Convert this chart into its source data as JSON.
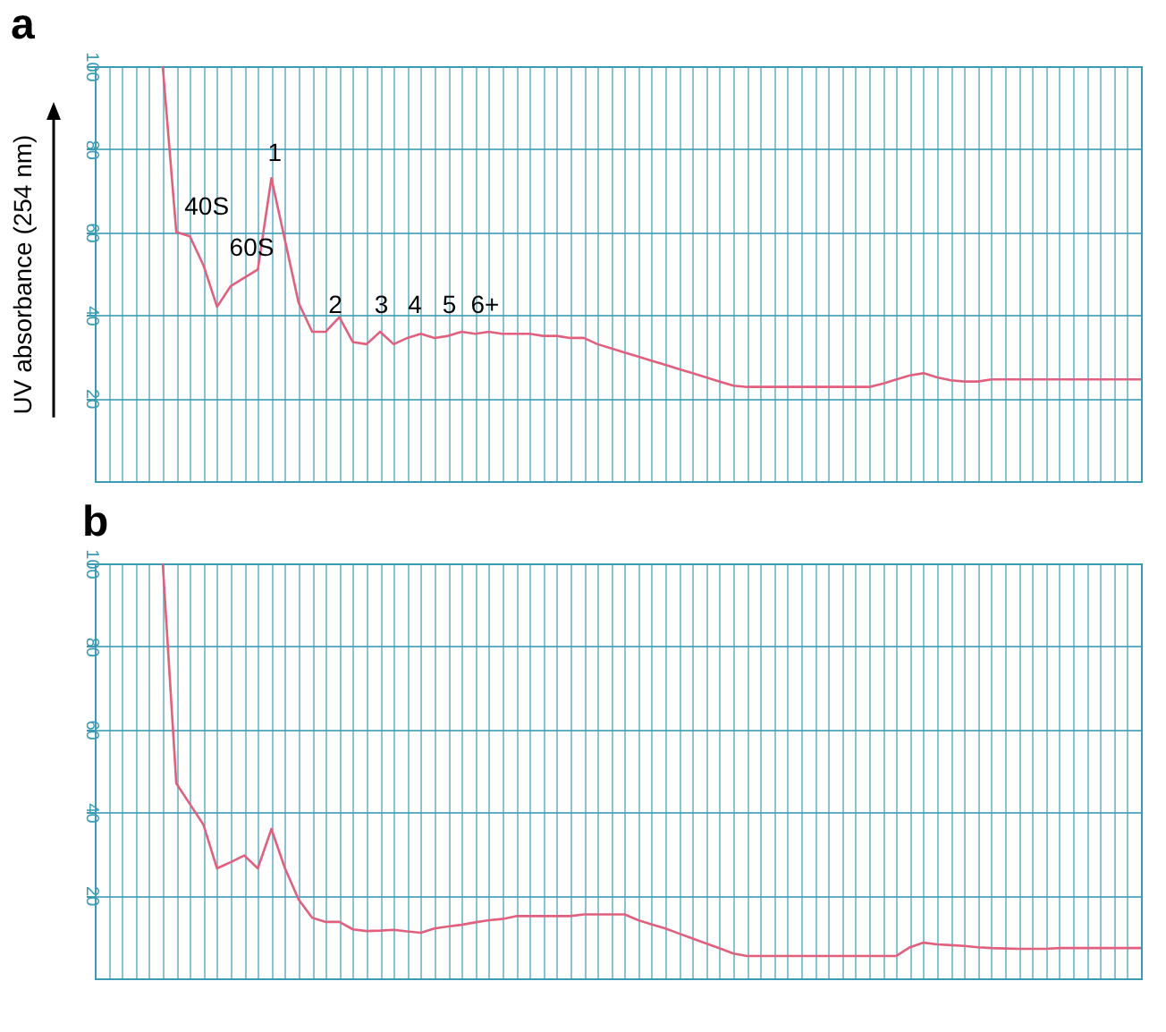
{
  "chart_data": [
    {
      "type": "line",
      "title": "a",
      "ylabel": "UV absorbance (254 nm)",
      "categories": [
        null,
        null,
        null,
        null,
        null,
        null,
        null,
        null,
        null,
        null,
        null,
        null,
        null,
        null,
        null,
        null,
        null,
        null,
        null,
        null,
        null,
        null,
        null,
        null,
        null,
        null,
        null,
        null,
        null,
        null,
        null,
        null,
        null,
        null,
        null,
        null,
        null,
        null,
        null,
        null,
        null,
        null,
        null,
        null,
        null,
        null,
        null,
        null,
        null,
        null,
        null,
        null,
        null,
        null,
        null,
        null,
        null,
        null,
        null,
        null,
        null,
        null,
        null,
        null,
        null,
        null,
        null,
        null,
        null,
        null,
        null,
        null,
        null,
        null,
        null,
        null,
        null,
        null
      ],
      "series": [
        {
          "color": "#e0607e",
          "values": [
            null,
            null,
            null,
            null,
            null,
            100,
            60,
            59,
            52,
            42,
            47,
            49,
            51,
            73,
            58,
            43,
            36,
            36,
            39.5,
            33.5,
            33,
            36,
            33,
            34.5,
            35.5,
            34.5,
            35,
            36,
            35.5,
            36,
            35.5,
            35.5,
            35.5,
            35,
            35,
            34.5,
            34.5,
            33,
            32,
            31,
            30,
            29,
            28,
            27,
            26,
            25,
            24,
            23,
            22.7,
            22.7,
            22.7,
            22.7,
            22.7,
            22.7,
            22.7,
            22.7,
            22.7,
            22.7,
            23.5,
            24.5,
            25.5,
            26,
            25,
            24.3,
            24,
            24,
            24.5,
            24.5,
            24.5,
            24.5,
            24.5,
            24.5,
            24.5,
            24.5,
            24.5,
            24.5,
            24.5,
            24.5
          ]
        }
      ],
      "ylim": [
        0,
        100
      ],
      "yticks": [
        20,
        40,
        60,
        80,
        100
      ],
      "grid": true,
      "annotations": [
        "40S",
        "60S",
        "1",
        "2",
        "3",
        "4",
        "5",
        "6+"
      ]
    },
    {
      "type": "line",
      "title": "b",
      "categories": [
        null,
        null,
        null,
        null,
        null,
        null,
        null,
        null,
        null,
        null,
        null,
        null,
        null,
        null,
        null,
        null,
        null,
        null,
        null,
        null,
        null,
        null,
        null,
        null,
        null,
        null,
        null,
        null,
        null,
        null,
        null,
        null,
        null,
        null,
        null,
        null,
        null,
        null,
        null,
        null,
        null,
        null,
        null,
        null,
        null,
        null,
        null,
        null,
        null,
        null,
        null,
        null,
        null,
        null,
        null,
        null,
        null,
        null,
        null,
        null,
        null,
        null,
        null,
        null,
        null,
        null,
        null,
        null,
        null,
        null,
        null,
        null,
        null,
        null,
        null,
        null,
        null,
        null
      ],
      "series": [
        {
          "color": "#e0607e",
          "values": [
            null,
            null,
            null,
            null,
            null,
            100,
            47,
            42,
            37,
            26.5,
            28,
            29.6,
            26.5,
            36,
            26.5,
            19,
            14.6,
            13.6,
            13.6,
            11.8,
            11.4,
            11.5,
            11.7,
            11.3,
            11,
            12,
            12.5,
            12.9,
            13.5,
            14,
            14.3,
            15,
            15,
            15,
            15,
            15,
            15.4,
            15.4,
            15.4,
            15.4,
            14,
            13,
            12,
            10.8,
            9.6,
            8.4,
            7.2,
            6,
            5.4,
            5.4,
            5.4,
            5.4,
            5.4,
            5.4,
            5.4,
            5.4,
            5.4,
            5.4,
            5.4,
            5.4,
            7.5,
            8.6,
            8.2,
            8,
            7.8,
            7.5,
            7.3,
            7.2,
            7.1,
            7.1,
            7.1,
            7.3,
            7.3,
            7.3,
            7.3,
            7.3,
            7.3,
            7.3
          ]
        }
      ],
      "ylim": [
        0,
        100
      ],
      "yticks": [
        20,
        40,
        60,
        80,
        100
      ],
      "grid": true
    }
  ]
}
